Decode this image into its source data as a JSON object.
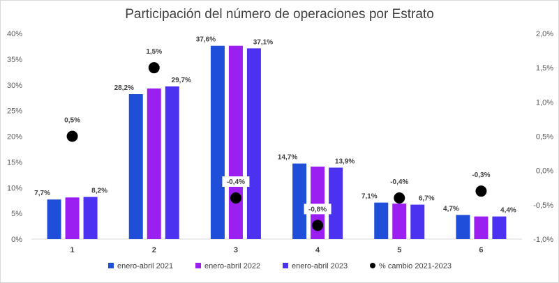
{
  "chart_data": {
    "type": "bar",
    "title": "Participación del número de operaciones por Estrato",
    "categories": [
      "1",
      "2",
      "3",
      "4",
      "5",
      "6"
    ],
    "series": [
      {
        "name": "enero-abril 2021",
        "values": [
          7.7,
          28.2,
          37.6,
          14.7,
          7.1,
          4.7
        ],
        "labels": [
          "7,7%",
          "28,2%",
          "37,6%",
          "14,7%",
          "7,1%",
          "4,7%"
        ],
        "color": "#1f4fd8"
      },
      {
        "name": "enero-abril 2022",
        "values": [
          8.1,
          29.3,
          37.6,
          14.1,
          6.9,
          4.4
        ],
        "labels": [
          "",
          "",
          "",
          "",
          "",
          ""
        ],
        "color": "#9b1ff0"
      },
      {
        "name": "enero-abril 2023",
        "values": [
          8.2,
          29.7,
          37.1,
          13.9,
          6.7,
          4.4
        ],
        "labels": [
          "8,2%",
          "29,7%",
          "37,1%",
          "13,9%",
          "6,7%",
          "4,4%"
        ],
        "color": "#4a32f0"
      }
    ],
    "secondary_series": {
      "name": "% cambio 2021-2023",
      "type": "scatter",
      "values": [
        0.5,
        1.5,
        -0.4,
        -0.8,
        -0.4,
        -0.3
      ],
      "labels": [
        "0,5%",
        "1,5%",
        "-0,4%",
        "-0,8%",
        "-0,4%",
        "-0,3%"
      ],
      "color": "#000000"
    },
    "y_left": {
      "min": 0,
      "max": 40,
      "step": 5,
      "ticks": [
        "0%",
        "5%",
        "10%",
        "15%",
        "20%",
        "25%",
        "30%",
        "35%",
        "40%"
      ]
    },
    "y_right": {
      "min": -1.0,
      "max": 2.0,
      "step": 0.5,
      "ticks": [
        "-1,0%",
        "-0,5%",
        "0,0%",
        "0,5%",
        "1,0%",
        "1,5%",
        "2,0%"
      ]
    },
    "grid": false,
    "legend_position": "bottom"
  }
}
